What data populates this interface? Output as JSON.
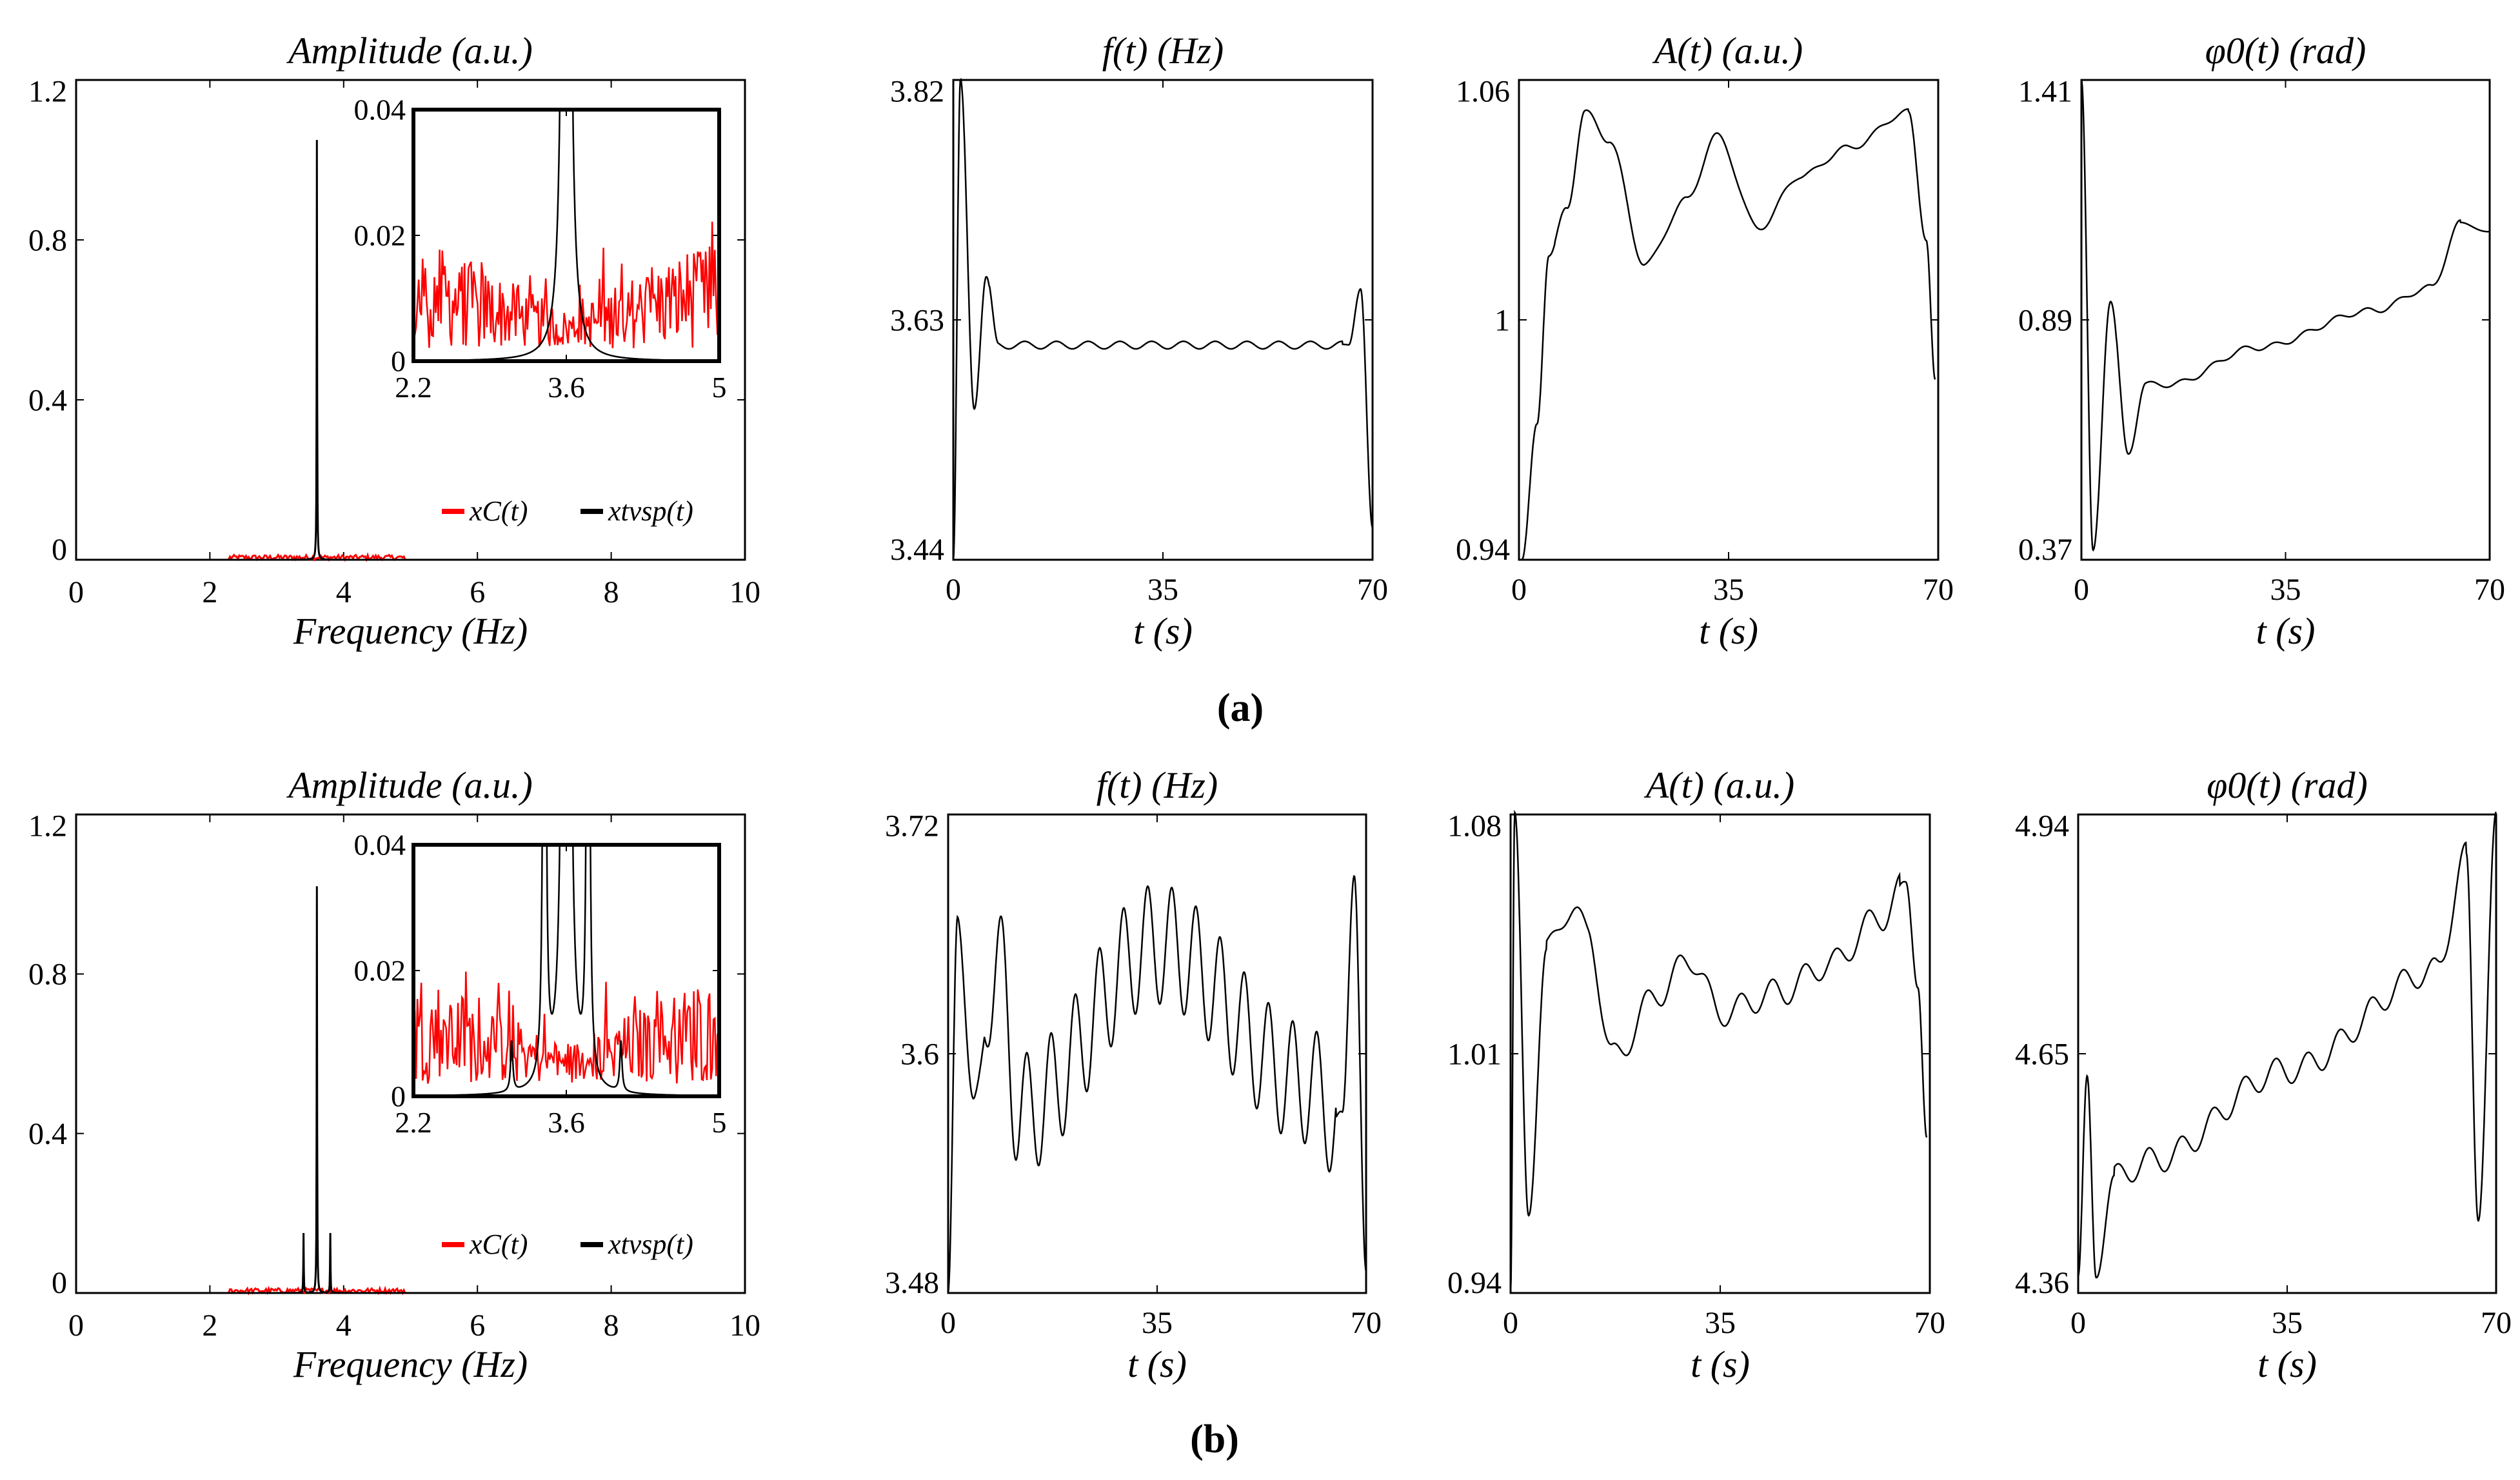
{
  "figure_labels": [
    "(a)",
    "(b)"
  ],
  "chart_data": [
    {
      "id": "a-spectrum",
      "type": "line",
      "title": "Amplitude (a.u.)",
      "xlabel": "Frequency (Hz)",
      "xlim": [
        0,
        10
      ],
      "ylim": [
        0,
        1.2
      ],
      "xticks": [
        0,
        2,
        4,
        6,
        8,
        10
      ],
      "xtick_labels": [
        "0",
        "2",
        "4",
        "6",
        "8",
        "10"
      ],
      "yticks": [
        0,
        0.4,
        0.8,
        1.2
      ],
      "ytick_labels": [
        "0",
        "0.4",
        "0.8",
        "1.2"
      ],
      "legend": [
        "xC(t)",
        "xtvsp(t)"
      ],
      "series": [
        {
          "name": "xC(t)",
          "color": "#ff0000",
          "noise_band": [
            2.3,
            4.9
          ],
          "noise_max": 0.02
        },
        {
          "name": "xtvsp(t)",
          "color": "#000000",
          "peaks": [
            {
              "x": 3.6,
              "y": 1.05
            }
          ]
        }
      ],
      "inset": {
        "xlim": [
          2.2,
          5
        ],
        "ylim": [
          0,
          0.04
        ],
        "xticks": [
          2.2,
          3.6,
          5
        ],
        "xtick_labels": [
          "2.2",
          "3.6",
          "5"
        ],
        "yticks": [
          0,
          0.02,
          0.04
        ],
        "ytick_labels": [
          "0",
          "0.02",
          "0.04"
        ],
        "peaks": [
          {
            "x": 3.6,
            "y": 1.05
          }
        ]
      }
    },
    {
      "id": "a-freq",
      "type": "line",
      "title": "f(t) (Hz)",
      "xlabel": "t (s)",
      "xlim": [
        0,
        70
      ],
      "ylim": [
        3.44,
        3.82
      ],
      "xticks": [
        0,
        35,
        70
      ],
      "xtick_labels": [
        "0",
        "35",
        "70"
      ],
      "yticks": [
        3.44,
        3.63,
        3.82
      ],
      "ytick_labels": [
        "3.44",
        "3.63",
        "3.82"
      ],
      "key_points": [
        [
          0,
          3.44
        ],
        [
          1.2,
          3.82
        ],
        [
          3.5,
          3.56
        ],
        [
          5.5,
          3.664
        ],
        [
          7.5,
          3.61
        ],
        [
          66,
          3.61
        ],
        [
          68,
          3.655
        ],
        [
          70,
          3.465
        ]
      ]
    },
    {
      "id": "a-amp",
      "type": "line",
      "title": "A(t) (a.u.)",
      "xlabel": "t (s)",
      "xlim": [
        0,
        70
      ],
      "ylim": [
        0.94,
        1.06
      ],
      "xticks": [
        0,
        35,
        70
      ],
      "xtick_labels": [
        "0",
        "35",
        "70"
      ],
      "yticks": [
        0.94,
        1.0,
        1.06
      ],
      "ytick_labels": [
        "0.94",
        "1",
        "1.06"
      ],
      "key_points": [
        [
          0.5,
          0.94
        ],
        [
          3,
          0.974
        ],
        [
          5,
          1.016
        ],
        [
          8,
          1.028
        ],
        [
          11,
          1.052
        ],
        [
          15,
          1.045
        ],
        [
          21,
          1.014
        ],
        [
          28,
          1.03
        ],
        [
          33,
          1.046
        ],
        [
          40,
          1.023
        ],
        [
          47,
          1.036
        ],
        [
          55,
          1.043
        ],
        [
          65,
          1.052
        ],
        [
          68,
          1.02
        ],
        [
          69.5,
          0.985
        ]
      ]
    },
    {
      "id": "a-phase",
      "type": "line",
      "title": "φ0(t) (rad)",
      "xlabel": "t (s)",
      "xlim": [
        0,
        70
      ],
      "ylim": [
        0.37,
        1.41
      ],
      "xticks": [
        0,
        35,
        70
      ],
      "xtick_labels": [
        "0",
        "35",
        "70"
      ],
      "yticks": [
        0.37,
        0.89,
        1.41
      ],
      "ytick_labels": [
        "0.37",
        "0.89",
        "1.41"
      ],
      "key_points": [
        [
          0,
          1.41
        ],
        [
          2,
          0.39
        ],
        [
          5,
          0.93
        ],
        [
          8,
          0.6
        ],
        [
          11,
          0.75
        ],
        [
          15,
          0.75
        ],
        [
          30,
          0.83
        ],
        [
          50,
          0.91
        ],
        [
          60,
          0.96
        ],
        [
          65,
          1.1
        ],
        [
          70,
          1.08
        ]
      ]
    },
    {
      "id": "b-spectrum",
      "type": "line",
      "title": "Amplitude (a.u.)",
      "xlabel": "Frequency (Hz)",
      "xlim": [
        0,
        10
      ],
      "ylim": [
        0,
        1.2
      ],
      "xticks": [
        0,
        2,
        4,
        6,
        8,
        10
      ],
      "xtick_labels": [
        "0",
        "2",
        "4",
        "6",
        "8",
        "10"
      ],
      "yticks": [
        0,
        0.4,
        0.8,
        1.2
      ],
      "ytick_labels": [
        "0",
        "0.4",
        "0.8",
        "1.2"
      ],
      "legend": [
        "xC(t)",
        "xtvsp(t)"
      ],
      "series": [
        {
          "name": "xC(t)",
          "color": "#ff0000",
          "noise_band": [
            2.3,
            4.9
          ],
          "noise_max": 0.02
        },
        {
          "name": "xtvsp(t)",
          "color": "#000000",
          "peaks": [
            {
              "x": 3.4,
              "y": 0.15
            },
            {
              "x": 3.6,
              "y": 1.02
            },
            {
              "x": 3.8,
              "y": 0.15
            }
          ]
        }
      ],
      "inset": {
        "xlim": [
          2.2,
          5
        ],
        "ylim": [
          0,
          0.04
        ],
        "xticks": [
          2.2,
          3.6,
          5
        ],
        "xtick_labels": [
          "2.2",
          "3.6",
          "5"
        ],
        "yticks": [
          0,
          0.02,
          0.04
        ],
        "ytick_labels": [
          "0",
          "0.02",
          "0.04"
        ],
        "peaks": [
          {
            "x": 3.1,
            "y": 0.008
          },
          {
            "x": 3.4,
            "y": 0.15
          },
          {
            "x": 3.6,
            "y": 1.02
          },
          {
            "x": 3.8,
            "y": 0.15
          },
          {
            "x": 4.1,
            "y": 0.008
          }
        ]
      }
    },
    {
      "id": "b-freq",
      "type": "line",
      "title": "f(t) (Hz)",
      "xlabel": "t (s)",
      "xlim": [
        0,
        70
      ],
      "ylim": [
        3.48,
        3.72
      ],
      "xticks": [
        0,
        35,
        70
      ],
      "xtick_labels": [
        "0",
        "35",
        "70"
      ],
      "yticks": [
        3.48,
        3.6,
        3.72
      ],
      "ytick_labels": [
        "3.48",
        "3.6",
        "3.72"
      ],
      "key_points": [
        [
          0,
          3.48
        ],
        [
          1.6,
          3.665
        ],
        [
          4.4,
          3.575
        ],
        [
          8,
          3.65
        ],
        [
          12,
          3.57
        ],
        [
          35,
          3.655
        ],
        [
          60,
          3.585
        ],
        [
          66,
          3.565
        ],
        [
          68,
          3.695
        ],
        [
          70,
          3.485
        ]
      ]
    },
    {
      "id": "b-amp",
      "type": "line",
      "title": "A(t) (a.u.)",
      "xlabel": "t (s)",
      "xlim": [
        0,
        70
      ],
      "ylim": [
        0.94,
        1.08
      ],
      "xticks": [
        0,
        35,
        70
      ],
      "xtick_labels": [
        "0",
        "35",
        "70"
      ],
      "yticks": [
        0.94,
        1.01,
        1.08
      ],
      "ytick_labels": [
        "0.94",
        "1.01",
        "1.08"
      ],
      "key_points": [
        [
          0,
          0.94
        ],
        [
          0.7,
          1.08
        ],
        [
          3,
          0.963
        ],
        [
          6,
          1.04
        ],
        [
          10,
          1.053
        ],
        [
          13,
          1.045
        ],
        [
          17,
          1.009
        ],
        [
          25,
          1.028
        ],
        [
          30,
          1.038
        ],
        [
          35,
          1.022
        ],
        [
          45,
          1.028
        ],
        [
          53,
          1.036
        ],
        [
          62,
          1.05
        ],
        [
          66,
          1.06
        ],
        [
          68,
          1.03
        ],
        [
          69.5,
          0.985
        ]
      ]
    },
    {
      "id": "b-phase",
      "type": "line",
      "title": "φ0(t) (rad)",
      "xlabel": "t (s)",
      "xlim": [
        0,
        70
      ],
      "ylim": [
        4.36,
        4.94
      ],
      "xticks": [
        0,
        35,
        70
      ],
      "xtick_labels": [
        "0",
        "35",
        "70"
      ],
      "yticks": [
        4.36,
        4.65,
        4.94
      ],
      "ytick_labels": [
        "4.36",
        "4.65",
        "4.94"
      ],
      "key_points": [
        [
          0,
          4.38
        ],
        [
          1.5,
          4.62
        ],
        [
          3,
          4.38
        ],
        [
          6,
          4.5
        ],
        [
          12,
          4.52
        ],
        [
          35,
          4.63
        ],
        [
          60,
          4.75
        ],
        [
          65,
          4.89
        ],
        [
          67,
          4.45
        ],
        [
          70,
          4.94
        ]
      ]
    }
  ]
}
